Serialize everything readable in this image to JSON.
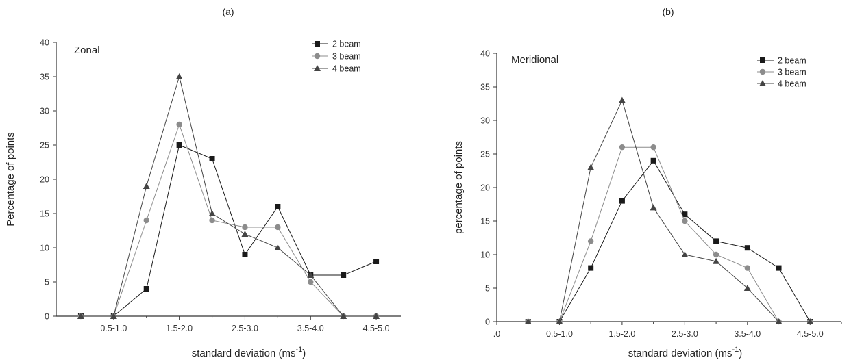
{
  "chart_data": [
    {
      "type": "line",
      "panel_label": "(a)",
      "inset_title": "Zonal",
      "xlabel": "standard deviation (ms",
      "xlabel_sup": "-1",
      "xlabel_close": ")",
      "ylabel": "Percentage of points",
      "ylim": [
        0,
        40
      ],
      "yticks": [
        0,
        5,
        10,
        15,
        20,
        25,
        30,
        35,
        40
      ],
      "x_positions": [
        0,
        1,
        2,
        3,
        4,
        5,
        6,
        7,
        8,
        9
      ],
      "xlim": [
        -0.75,
        9.75
      ],
      "xtick_labels": [
        {
          "pos": 1,
          "label": "0.5-1.0"
        },
        {
          "pos": 3,
          "label": "1.5-2.0"
        },
        {
          "pos": 5,
          "label": "2.5-3.0"
        },
        {
          "pos": 7,
          "label": "3.5-4.0"
        },
        {
          "pos": 9,
          "label": "4.5-5.0"
        }
      ],
      "legend_position": "top-right",
      "series": [
        {
          "name": "2 beam",
          "marker": "square",
          "color": "#1a1a1a",
          "values": [
            0,
            0,
            4,
            25,
            23,
            9,
            16,
            6,
            6,
            8
          ]
        },
        {
          "name": "3 beam",
          "marker": "circle",
          "color": "#8c8c8c",
          "values": [
            0,
            0,
            14,
            28,
            14,
            13,
            13,
            5,
            0,
            0
          ]
        },
        {
          "name": "4 beam",
          "marker": "triangle",
          "color": "#444444",
          "values": [
            0,
            0,
            19,
            35,
            15,
            12,
            10,
            6,
            0,
            0
          ]
        }
      ]
    },
    {
      "type": "line",
      "panel_label": "(b)",
      "inset_title": "Meridional",
      "xlabel": "standard deviation (ms",
      "xlabel_sup": "-1",
      "xlabel_close": ")",
      "ylabel": "percentage of points",
      "ylim": [
        0,
        40
      ],
      "yticks": [
        0,
        5,
        10,
        15,
        20,
        25,
        30,
        35,
        40
      ],
      "x_positions": [
        0,
        1,
        2,
        3,
        4,
        5,
        6,
        7,
        8,
        9
      ],
      "xlim": [
        -1,
        10
      ],
      "xtick_labels": [
        {
          "pos": -1,
          "label": ".0"
        },
        {
          "pos": 1,
          "label": "0.5-1.0"
        },
        {
          "pos": 3,
          "label": "1.5-2.0"
        },
        {
          "pos": 5,
          "label": "2.5-3.0"
        },
        {
          "pos": 7,
          "label": "3.5-4.0"
        },
        {
          "pos": 9,
          "label": "4.5-5.0"
        }
      ],
      "legend_position": "top-right",
      "series": [
        {
          "name": "2 beam",
          "marker": "square",
          "color": "#1a1a1a",
          "values": [
            0,
            0,
            8,
            18,
            24,
            16,
            12,
            11,
            8,
            0
          ]
        },
        {
          "name": "3 beam",
          "marker": "circle",
          "color": "#8c8c8c",
          "values": [
            0,
            0,
            12,
            26,
            26,
            15,
            10,
            8,
            0,
            0
          ]
        },
        {
          "name": "4 beam",
          "marker": "triangle",
          "color": "#444444",
          "values": [
            0,
            0,
            23,
            33,
            17,
            10,
            9,
            5,
            0,
            0
          ]
        }
      ]
    }
  ]
}
